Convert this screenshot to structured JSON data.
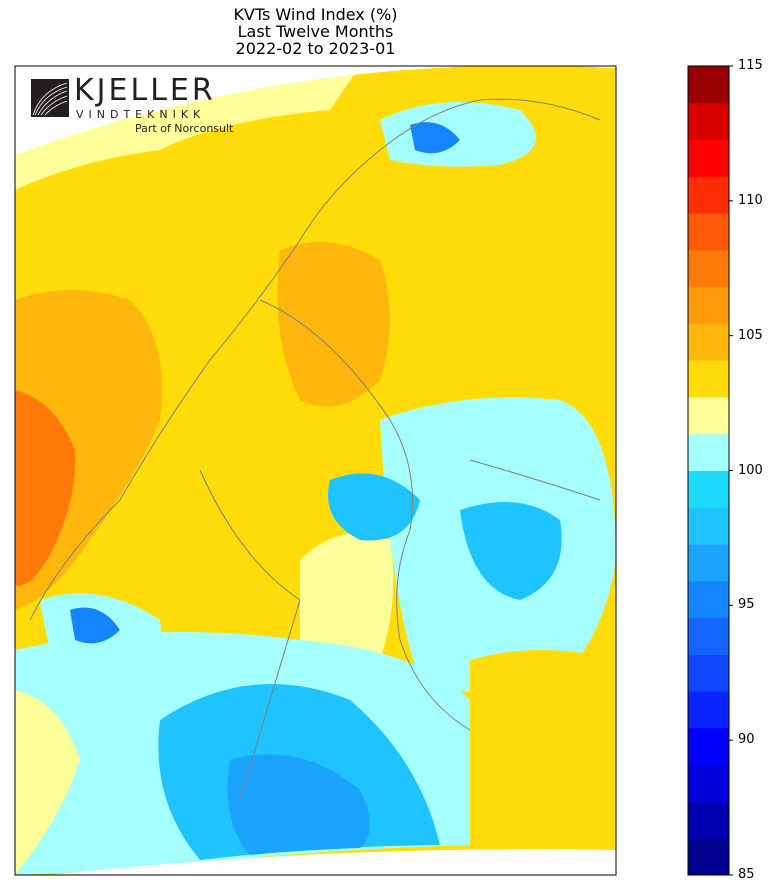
{
  "title": {
    "line1": "KVTs Wind Index (%)",
    "line2": "Last Twelve Months",
    "line3": "2022-02 to 2023-01"
  },
  "logo": {
    "name": "KJELLER",
    "sub": "VINDTEKNIKK",
    "tag": "Part of Norconsult"
  },
  "colorbar": {
    "min": 85,
    "max": 115,
    "step": 1.5,
    "ticks": [
      "85",
      "90",
      "95",
      "100",
      "105",
      "110",
      "115"
    ],
    "tick_values": [
      85,
      90,
      95,
      100,
      105,
      110,
      115
    ],
    "colors": [
      "#00008f",
      "#0000b3",
      "#0000d9",
      "#0000ff",
      "#0a24ff",
      "#0f46ff",
      "#1266ff",
      "#1484ff",
      "#1aa3ff",
      "#1fc3ff",
      "#1fdcff",
      "#a6ffff",
      "#ffff99",
      "#ffdc0a",
      "#ffb70d",
      "#ff9a0c",
      "#ff7a0a",
      "#ff5a07",
      "#ff2d04",
      "#ff0000",
      "#d90000"
    ],
    "top_color": "#990000"
  },
  "map_colors": {
    "ocean_yellow": "#ffdc0a",
    "light_yellow": "#ffff99",
    "orange": "#ffb70d",
    "dark_orange": "#ff7a0a",
    "cyan": "#a6ffff",
    "light_blue": "#1fc3ff",
    "mid_blue": "#1aa3ff",
    "blue": "#1484ff",
    "deep_blue": "#0a24ff",
    "border": "#808080"
  }
}
